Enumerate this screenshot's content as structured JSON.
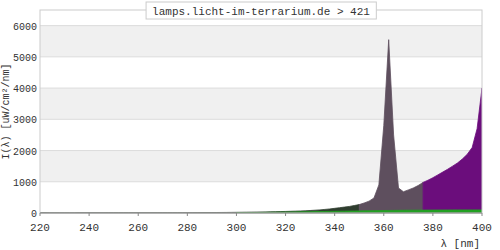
{
  "chart_data": {
    "type": "area",
    "title": "lamps.licht-im-terrarium.de > 421",
    "x_label": "λ [nm]",
    "y_label": "I(λ)  [uW/cm²/nm]",
    "x": [
      220,
      222,
      224,
      226,
      228,
      230,
      232,
      234,
      236,
      238,
      240,
      242,
      244,
      246,
      248,
      250,
      252,
      254,
      256,
      258,
      260,
      262,
      264,
      266,
      268,
      270,
      272,
      274,
      276,
      278,
      280,
      282,
      284,
      286,
      288,
      290,
      292,
      294,
      296,
      298,
      300,
      302,
      304,
      306,
      308,
      310,
      312,
      314,
      316,
      318,
      320,
      322,
      324,
      326,
      328,
      330,
      332,
      334,
      336,
      338,
      340,
      342,
      344,
      346,
      348,
      350,
      352,
      354,
      356,
      358,
      360,
      362,
      364,
      366,
      368,
      370,
      372,
      374,
      376,
      378,
      380,
      382,
      384,
      386,
      388,
      390,
      392,
      394,
      396,
      398,
      400
    ],
    "series": [
      {
        "color": "#2f3d2f",
        "values": [
          5,
          5,
          4,
          4,
          4,
          4,
          4,
          4,
          5,
          5,
          5,
          5,
          5,
          5,
          6,
          6,
          6,
          6,
          6,
          7,
          7,
          7,
          7,
          8,
          8,
          8,
          8,
          9,
          9,
          10,
          10,
          11,
          12,
          13,
          14,
          15,
          16,
          17,
          18,
          20,
          22,
          24,
          26,
          28,
          30,
          32,
          35,
          38,
          42,
          46,
          50,
          55,
          60,
          65,
          70,
          80,
          90,
          100,
          115,
          130,
          150,
          170,
          190,
          210,
          240,
          270,
          null,
          null,
          null,
          null,
          null,
          null,
          null,
          null,
          null,
          null,
          null,
          null,
          null,
          null,
          null,
          null,
          null,
          null,
          null,
          null,
          null,
          null,
          null,
          null,
          null
        ]
      },
      {
        "color": "#5e4f5e",
        "values": [
          null,
          null,
          null,
          null,
          null,
          null,
          null,
          null,
          null,
          null,
          null,
          null,
          null,
          null,
          null,
          null,
          null,
          null,
          null,
          null,
          null,
          null,
          null,
          null,
          null,
          null,
          null,
          null,
          null,
          null,
          null,
          null,
          null,
          null,
          null,
          null,
          null,
          null,
          null,
          null,
          null,
          null,
          null,
          null,
          null,
          null,
          null,
          null,
          null,
          null,
          null,
          null,
          null,
          null,
          null,
          null,
          null,
          null,
          null,
          null,
          null,
          null,
          null,
          null,
          null,
          270,
          320,
          380,
          480,
          900,
          2800,
          5550,
          2500,
          800,
          680,
          740,
          800,
          880,
          980,
          null,
          null,
          null,
          null,
          null,
          null,
          null,
          null,
          null,
          null,
          null,
          null
        ]
      },
      {
        "color": "#6b0d7c",
        "values": [
          null,
          null,
          null,
          null,
          null,
          null,
          null,
          null,
          null,
          null,
          null,
          null,
          null,
          null,
          null,
          null,
          null,
          null,
          null,
          null,
          null,
          null,
          null,
          null,
          null,
          null,
          null,
          null,
          null,
          null,
          null,
          null,
          null,
          null,
          null,
          null,
          null,
          null,
          null,
          null,
          null,
          null,
          null,
          null,
          null,
          null,
          null,
          null,
          null,
          null,
          null,
          null,
          null,
          null,
          null,
          null,
          null,
          null,
          null,
          null,
          null,
          null,
          null,
          null,
          null,
          null,
          null,
          null,
          null,
          null,
          null,
          null,
          null,
          null,
          null,
          null,
          null,
          null,
          980,
          1050,
          1130,
          1220,
          1310,
          1400,
          1500,
          1600,
          1730,
          1880,
          2100,
          2700,
          4000
        ]
      },
      {
        "color": "#22a022",
        "values": [
          null,
          null,
          null,
          null,
          null,
          null,
          null,
          null,
          null,
          null,
          null,
          null,
          null,
          null,
          null,
          null,
          null,
          null,
          null,
          null,
          null,
          null,
          null,
          null,
          null,
          null,
          null,
          null,
          null,
          null,
          null,
          null,
          null,
          null,
          null,
          null,
          null,
          null,
          null,
          null,
          5,
          8,
          10,
          13,
          15,
          18,
          20,
          23,
          25,
          28,
          30,
          33,
          35,
          38,
          40,
          42,
          45,
          47,
          50,
          52,
          55,
          57,
          60,
          62,
          65,
          67,
          70,
          72,
          75,
          77,
          80,
          82,
          84,
          86,
          88,
          90,
          91,
          92,
          93,
          94,
          95,
          96,
          97,
          98,
          99,
          100,
          100,
          100,
          100,
          100,
          100
        ]
      }
    ],
    "xlim": [
      220,
      400
    ],
    "xticks": [
      220,
      240,
      260,
      280,
      300,
      320,
      340,
      360,
      380,
      400
    ],
    "ylim": [
      0,
      6500
    ],
    "yticks": [
      0,
      1000,
      2000,
      3000,
      4000,
      5000,
      6000
    ],
    "grid": true
  }
}
